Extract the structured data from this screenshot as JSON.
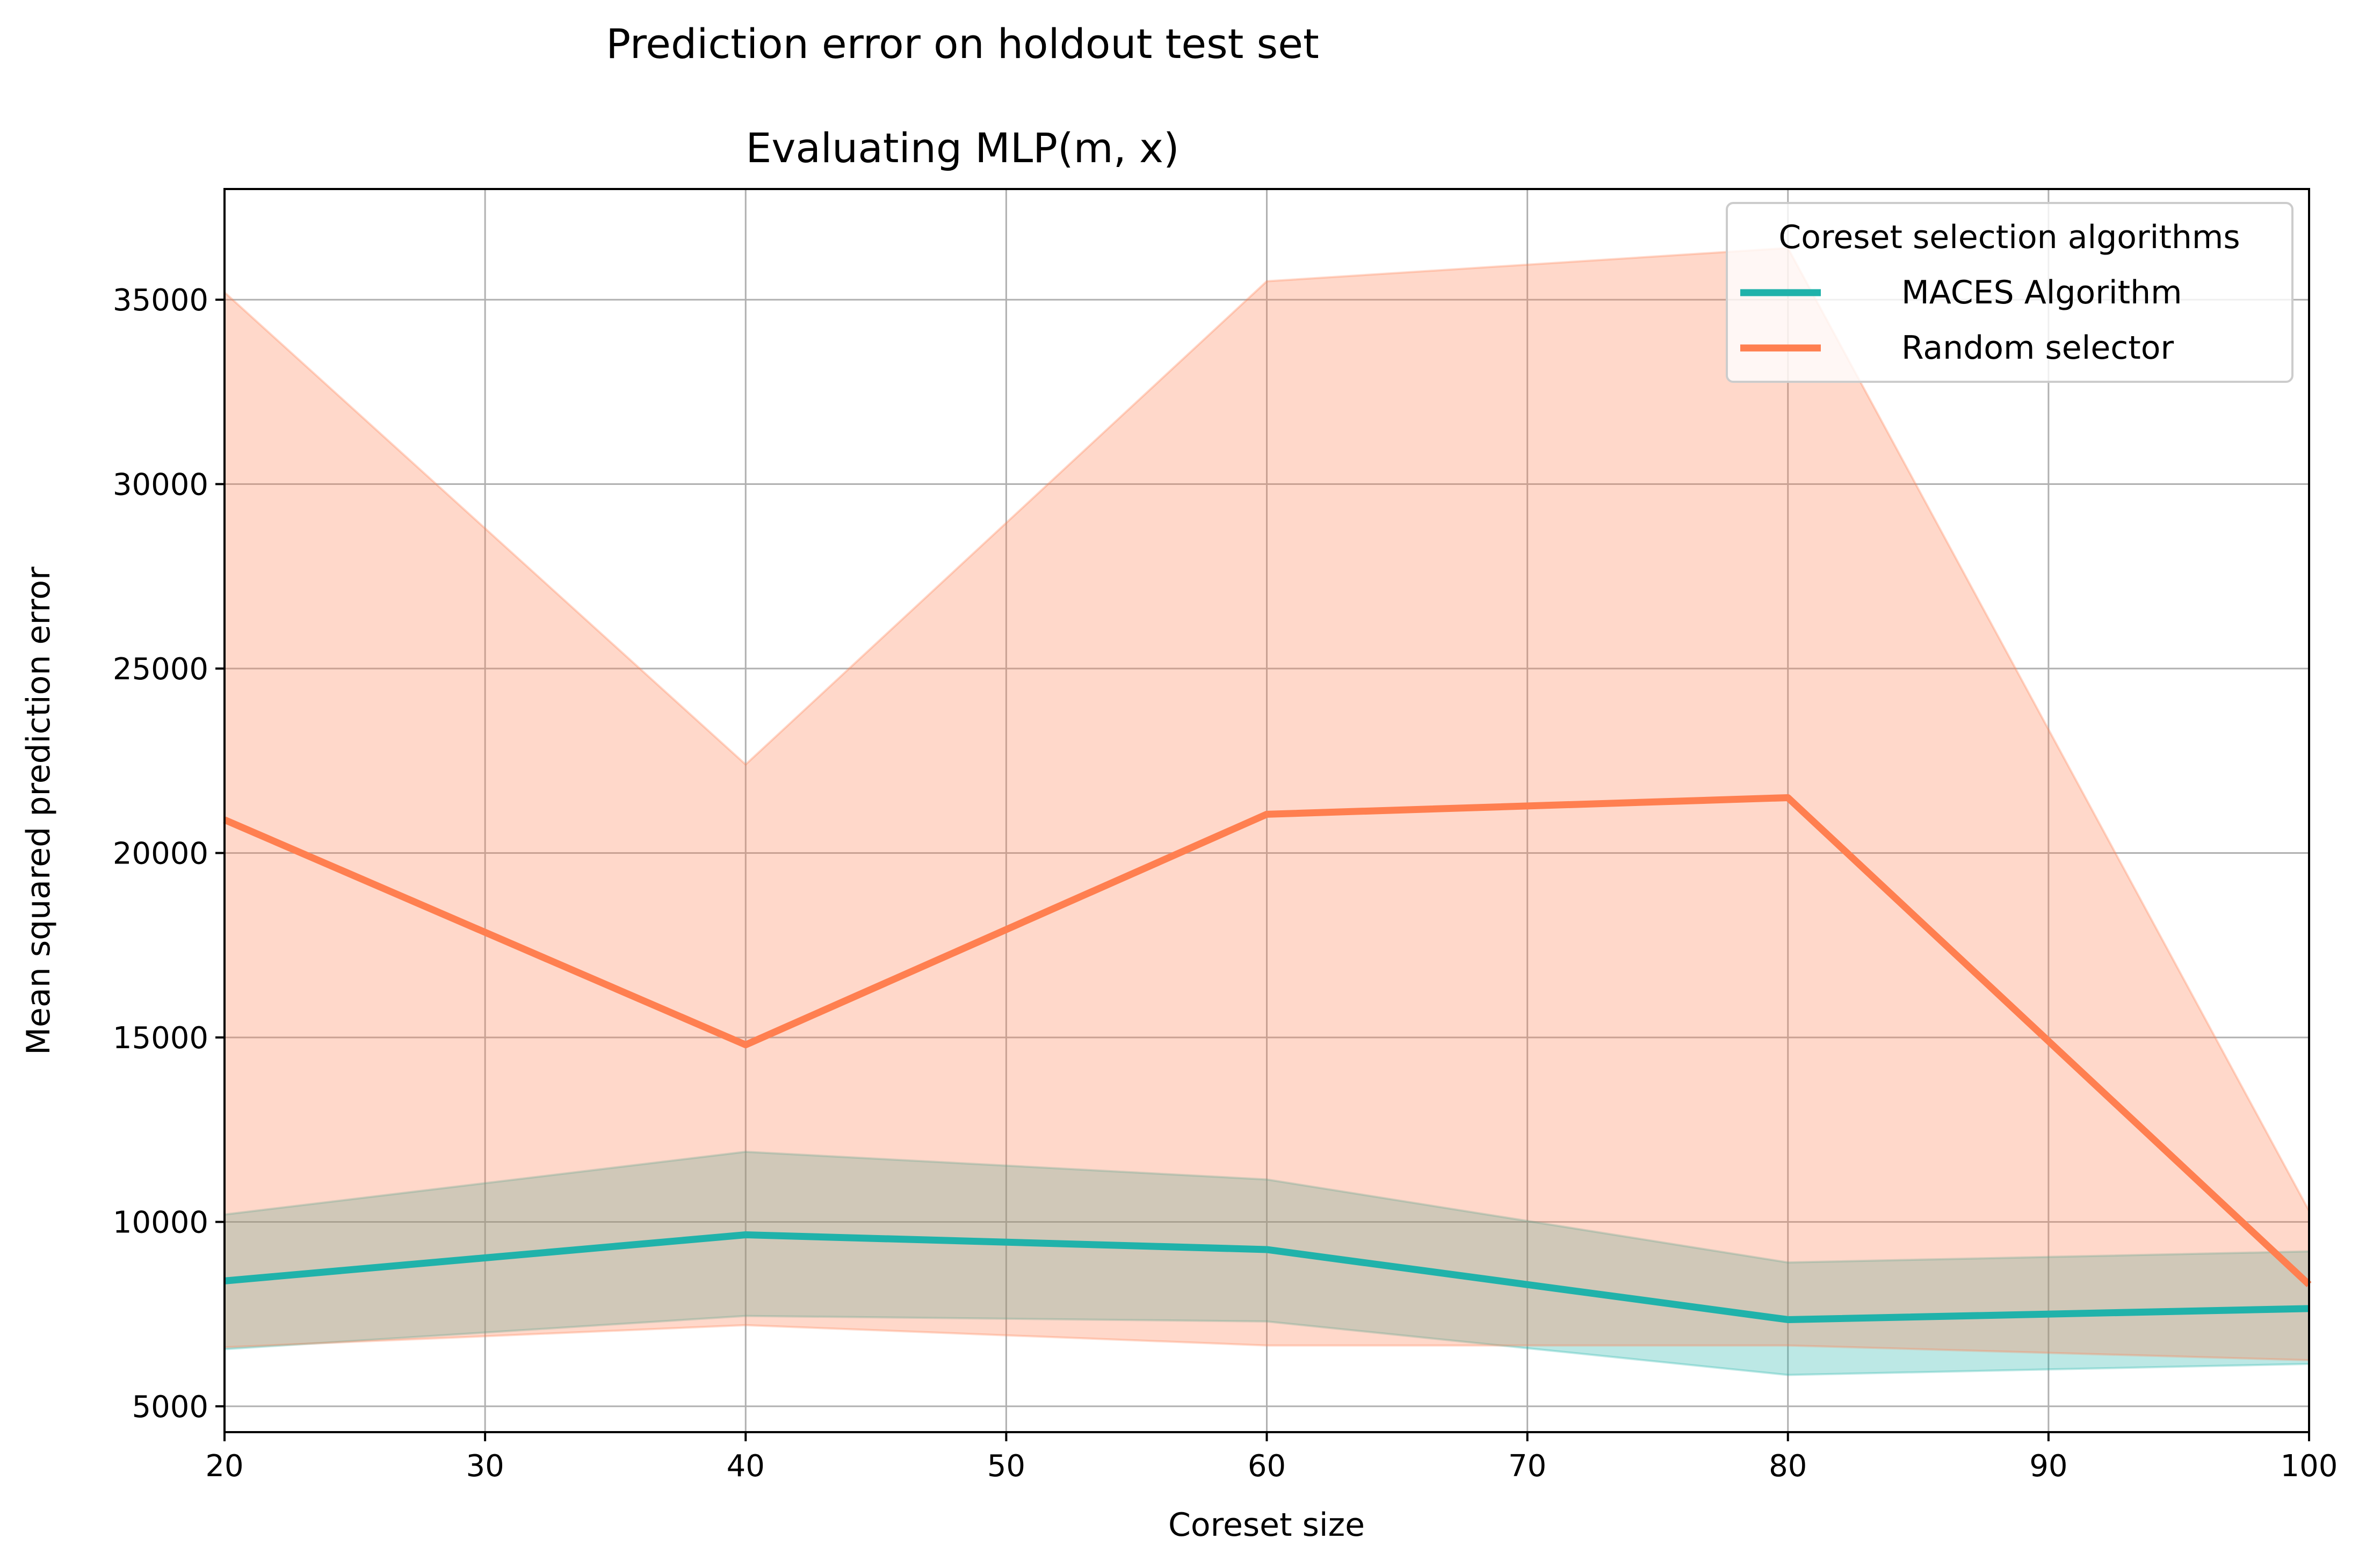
{
  "chart_data": {
    "type": "line",
    "suptitle": "Prediction error on holdout test set",
    "title": "Evaluating MLP(m, x)",
    "xlabel": "Coreset size",
    "ylabel": "Mean squared prediction error",
    "x": [
      20,
      40,
      60,
      80,
      100
    ],
    "xlim": [
      20,
      100
    ],
    "ylim": [
      4300,
      38000
    ],
    "xticks": [
      20,
      30,
      40,
      50,
      60,
      70,
      80,
      90,
      100
    ],
    "yticks": [
      5000,
      10000,
      15000,
      20000,
      25000,
      30000,
      35000
    ],
    "xtick_labels": [
      "20",
      "30",
      "40",
      "50",
      "60",
      "70",
      "80",
      "90",
      "100"
    ],
    "ytick_labels": [
      "5000",
      "10000",
      "15000",
      "20000",
      "25000",
      "30000",
      "35000"
    ],
    "grid": true,
    "legend": {
      "title": "Coreset selection algorithms",
      "placement": "top-right"
    },
    "series": [
      {
        "name": "MACES Algorithm",
        "color": "#20b2aa",
        "values": [
          8400,
          9650,
          9250,
          7350,
          7650
        ],
        "lower": [
          6550,
          7450,
          7300,
          5850,
          6150
        ],
        "upper": [
          10200,
          11900,
          11150,
          8900,
          9200
        ]
      },
      {
        "name": "Random selector",
        "color": "#ff7f50",
        "values": [
          20900,
          14800,
          21050,
          21500,
          8300
        ],
        "lower": [
          6600,
          7200,
          6650,
          6650,
          6250
        ],
        "upper": [
          35200,
          22400,
          35500,
          36400,
          10300
        ]
      }
    ]
  }
}
